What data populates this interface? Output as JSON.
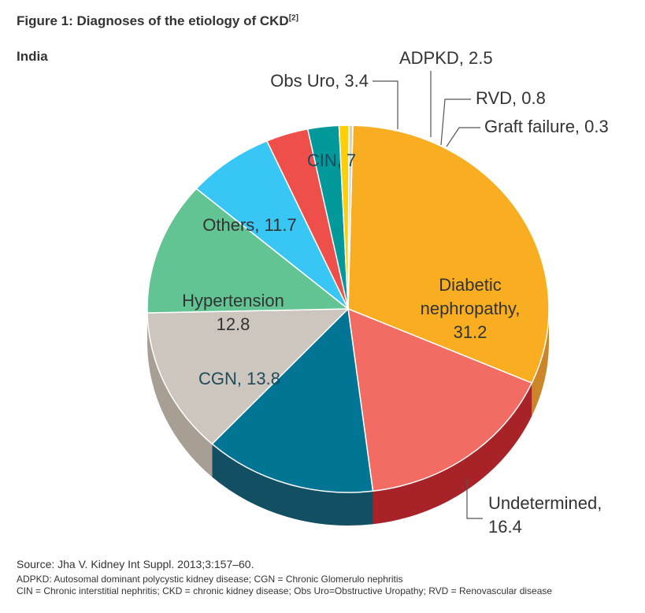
{
  "figure": {
    "title": "Figure 1: Diagnoses of the etiology of CKD",
    "title_ref": "[2]",
    "subtitle": "India"
  },
  "chart_data": {
    "type": "pie",
    "style": "3d-tilted",
    "labels": [
      "Diabetic nephropathy",
      "Undetermined",
      "CGN",
      "Hypertension",
      "Others",
      "CIN",
      "Obs Uro",
      "ADPKD",
      "RVD",
      "Graft failure"
    ],
    "values": [
      31.2,
      16.4,
      13.8,
      12.8,
      11.7,
      7,
      3.4,
      2.5,
      0.8,
      0.3
    ],
    "colors": [
      "#f9ad20",
      "#f26c64",
      "#027595",
      "#ccc6be",
      "#62c493",
      "#38c6f4",
      "#ef4f4a",
      "#03999a",
      "#fccf07",
      "#d4d0c2"
    ],
    "side_colors": [
      "#cd852a",
      "#a82327",
      "#134f62",
      "#a89f94",
      "#3f9a6f",
      "#1f93bd",
      "#b8302e",
      "#0b7474",
      "#c9a600",
      "#a6a296"
    ],
    "slice_labels": [
      {
        "lines": [
          "Diabetic",
          "nephropathy,",
          "31.2"
        ],
        "color": "#333333"
      },
      {
        "lines": [
          "Undetermined,",
          "16.4"
        ],
        "color": "#333333"
      },
      {
        "lines": [
          "CGN, 13.8"
        ],
        "color": "#1f4a5a"
      },
      {
        "lines": [
          "Hypertension",
          "12.8"
        ],
        "color": "#333333"
      },
      {
        "lines": [
          "Others, 11.7"
        ],
        "color": "#333333"
      },
      {
        "lines": [
          "CIN, 7"
        ],
        "color": "#1f4a5a"
      },
      {
        "lines": [
          "Obs Uro, 3.4"
        ],
        "color": "#333333"
      },
      {
        "lines": [
          "ADPKD, 2.5"
        ],
        "color": "#333333"
      },
      {
        "lines": [
          "RVD, 0.8"
        ],
        "color": "#333333"
      },
      {
        "lines": [
          "Graft failure, 0.3"
        ],
        "color": "#333333"
      }
    ]
  },
  "footer": {
    "source": "Source: Jha V. Kidney Int Suppl. 2013;3:157–60.",
    "abbrev_1": "ADPKD: Autosomal dominant polycystic kidney disease; CGN = Chronic Glomerulo nephritis",
    "abbrev_2": "CIN = Chronic interstitial nephritis; CKD = chronic kidney disease; Obs Uro=Obstructive Uropathy; RVD = Renovascular disease"
  }
}
